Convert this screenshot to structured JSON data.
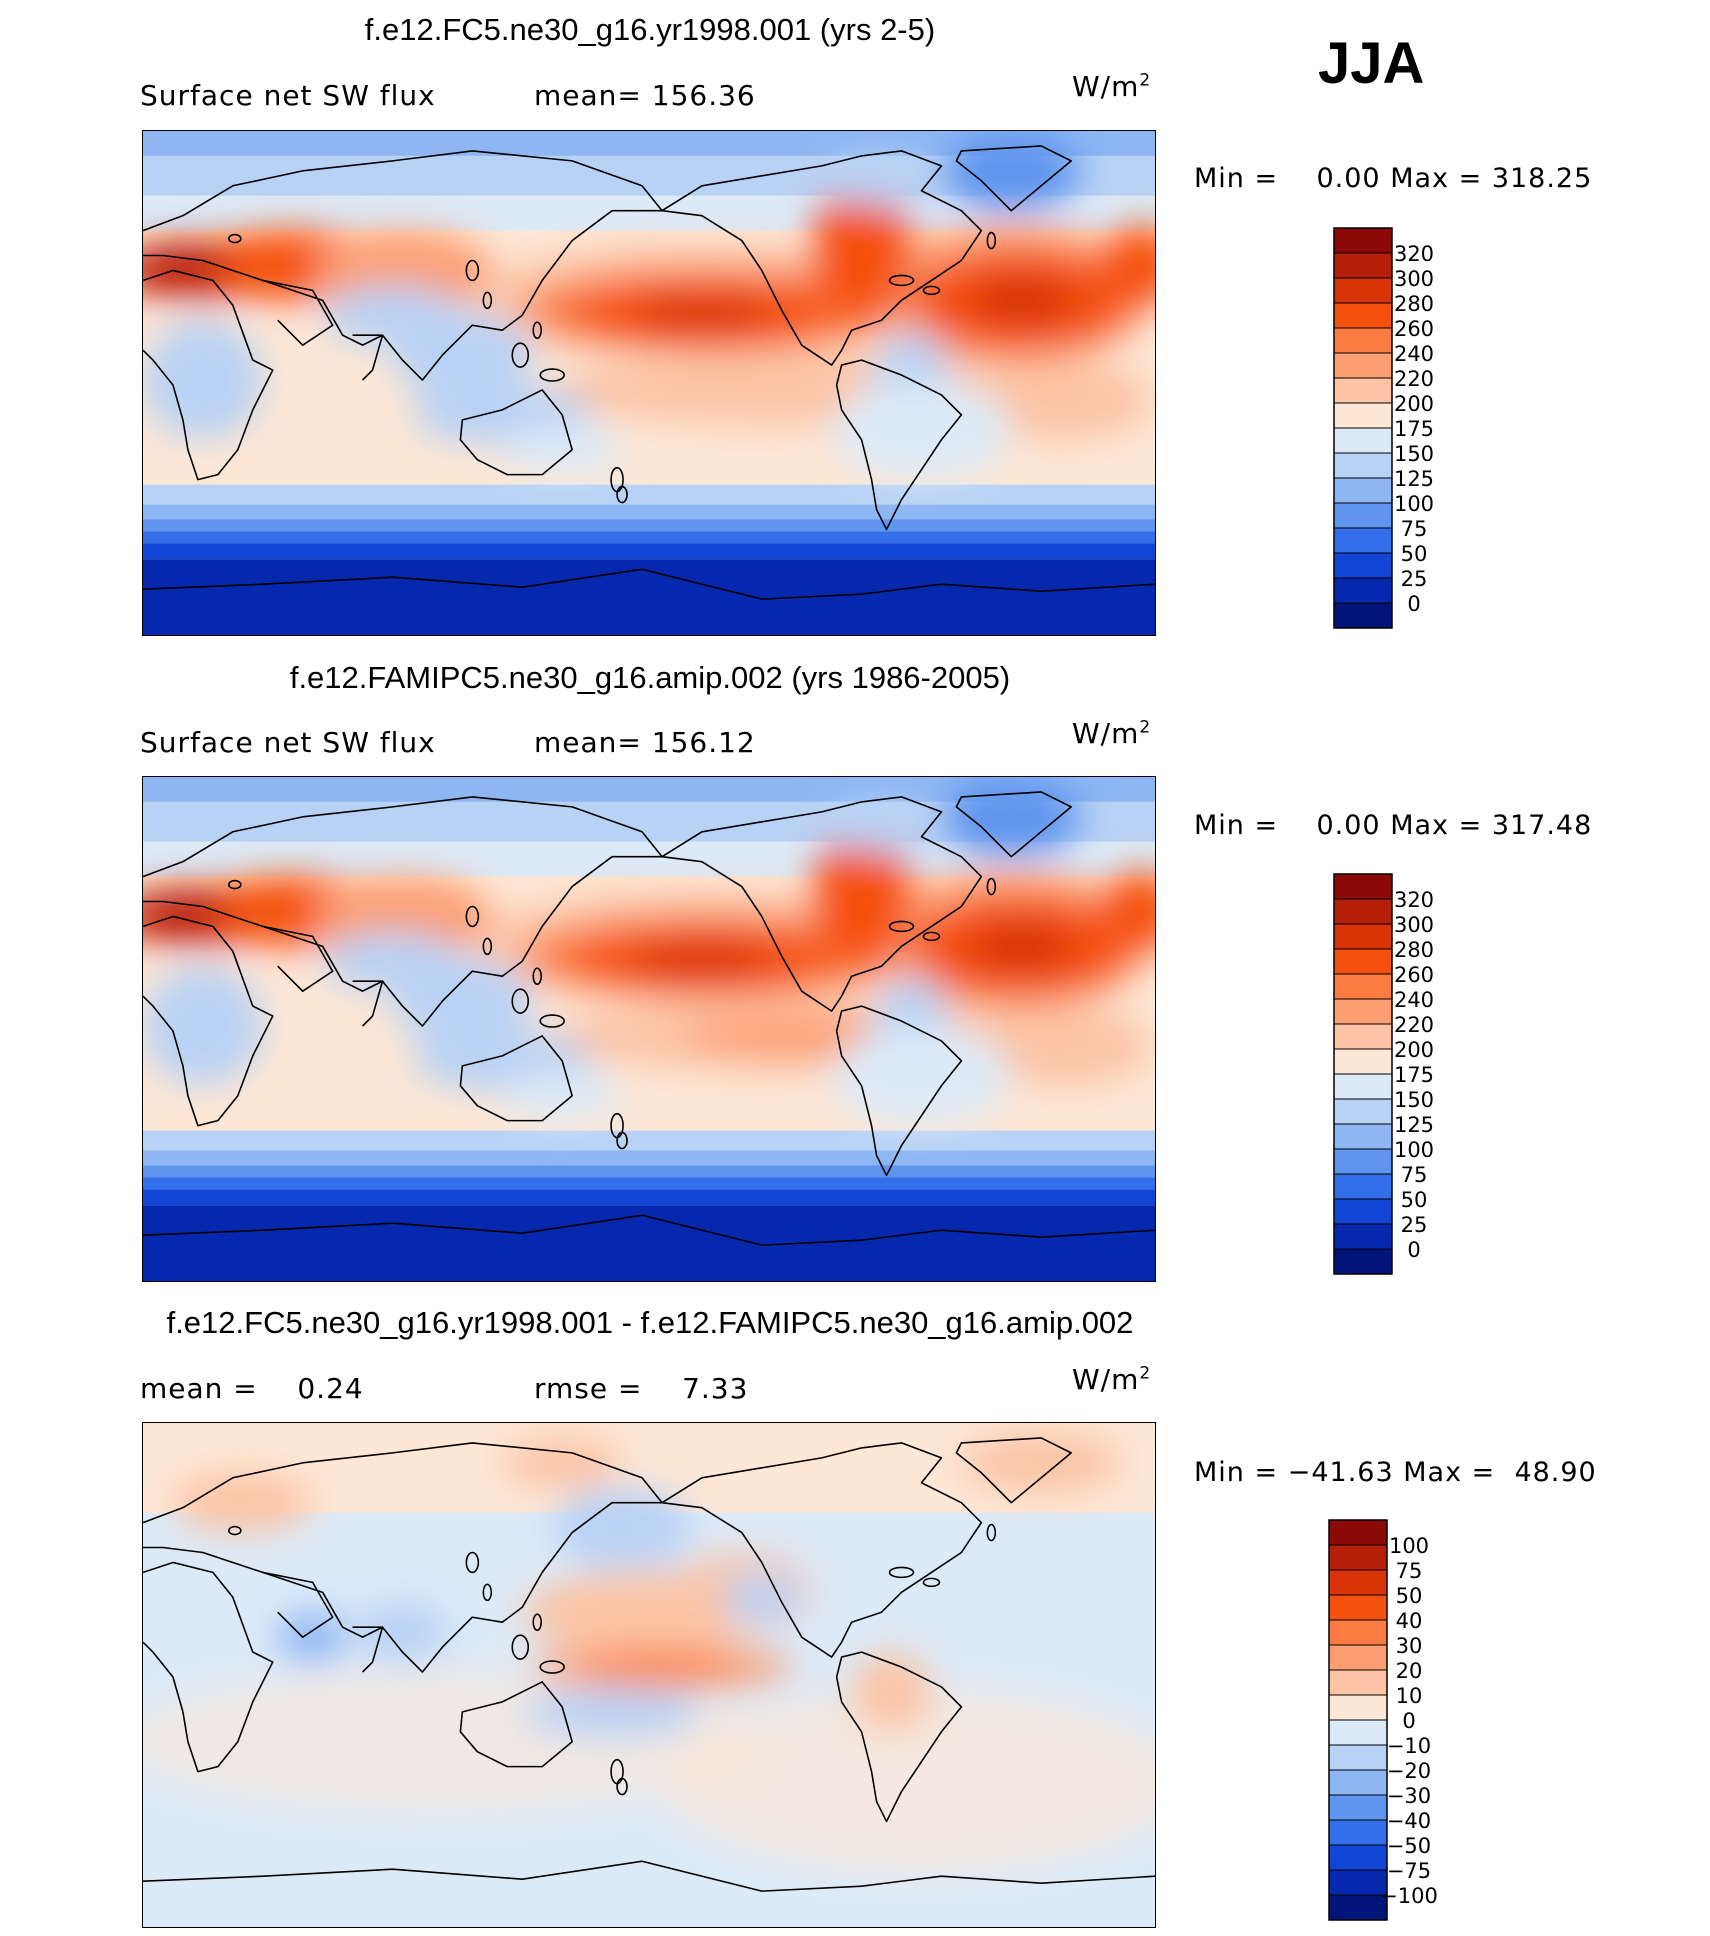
{
  "season": "JJA",
  "panels": [
    {
      "title": "f.e12.FC5.ne30_g16.yr1998.001 (yrs 2-5)",
      "left_label": "Surface net SW flux",
      "mid_label": "mean= 156.36",
      "units": "W/m",
      "units_exp": "2",
      "min_label": "Min =",
      "min_value": "0.00",
      "max_label": "Max =",
      "max_value": "318.25",
      "colorbar": {
        "labels": [
          "320",
          "300",
          "280",
          "260",
          "240",
          "220",
          "200",
          "175",
          "150",
          "125",
          "100",
          "75",
          "50",
          "25",
          "0"
        ],
        "colors": [
          "#8b0a07",
          "#b51e08",
          "#d83408",
          "#f5510e",
          "#fb7b42",
          "#fc9e72",
          "#fcc4a5",
          "#fde7d6",
          "#dceaf8",
          "#b8d2f5",
          "#8db6f3",
          "#5f95ee",
          "#336fe8",
          "#1145d6",
          "#0528ae",
          "#02147a"
        ]
      },
      "map_theme": "absolute-1"
    },
    {
      "title": "f.e12.FAMIPC5.ne30_g16.amip.002 (yrs 1986-2005)",
      "left_label": "Surface net SW flux",
      "mid_label": "mean= 156.12",
      "units": "W/m",
      "units_exp": "2",
      "min_label": "Min =",
      "min_value": "0.00",
      "max_label": "Max =",
      "max_value": "317.48",
      "colorbar": {
        "labels": [
          "320",
          "300",
          "280",
          "260",
          "240",
          "220",
          "200",
          "175",
          "150",
          "125",
          "100",
          "75",
          "50",
          "25",
          "0"
        ],
        "colors": [
          "#8b0a07",
          "#b51e08",
          "#d83408",
          "#f5510e",
          "#fb7b42",
          "#fc9e72",
          "#fcc4a5",
          "#fde7d6",
          "#dceaf8",
          "#b8d2f5",
          "#8db6f3",
          "#5f95ee",
          "#336fe8",
          "#1145d6",
          "#0528ae",
          "#02147a"
        ]
      },
      "map_theme": "absolute-2"
    },
    {
      "title": "f.e12.FC5.ne30_g16.yr1998.001 - f.e12.FAMIPC5.ne30_g16.amip.002",
      "left_label": "mean =    0.24",
      "mid_label": "rmse =    7.33",
      "units": "W/m",
      "units_exp": "2",
      "min_label": "Min =",
      "min_value": "−41.63",
      "max_label": "Max =",
      "max_value": "48.90",
      "colorbar": {
        "labels": [
          "100",
          "75",
          "50",
          "40",
          "30",
          "20",
          "10",
          "0",
          "−10",
          "−20",
          "−30",
          "−40",
          "−50",
          "−75",
          "−100"
        ],
        "colors": [
          "#8b0a07",
          "#b51e08",
          "#d83408",
          "#f5510e",
          "#fb7b42",
          "#fc9e72",
          "#fcc4a5",
          "#fde7d6",
          "#dceaf8",
          "#b8d2f5",
          "#8db6f3",
          "#5f95ee",
          "#336fe8",
          "#1145d6",
          "#0528ae",
          "#02147a"
        ]
      },
      "map_theme": "difference"
    }
  ]
}
